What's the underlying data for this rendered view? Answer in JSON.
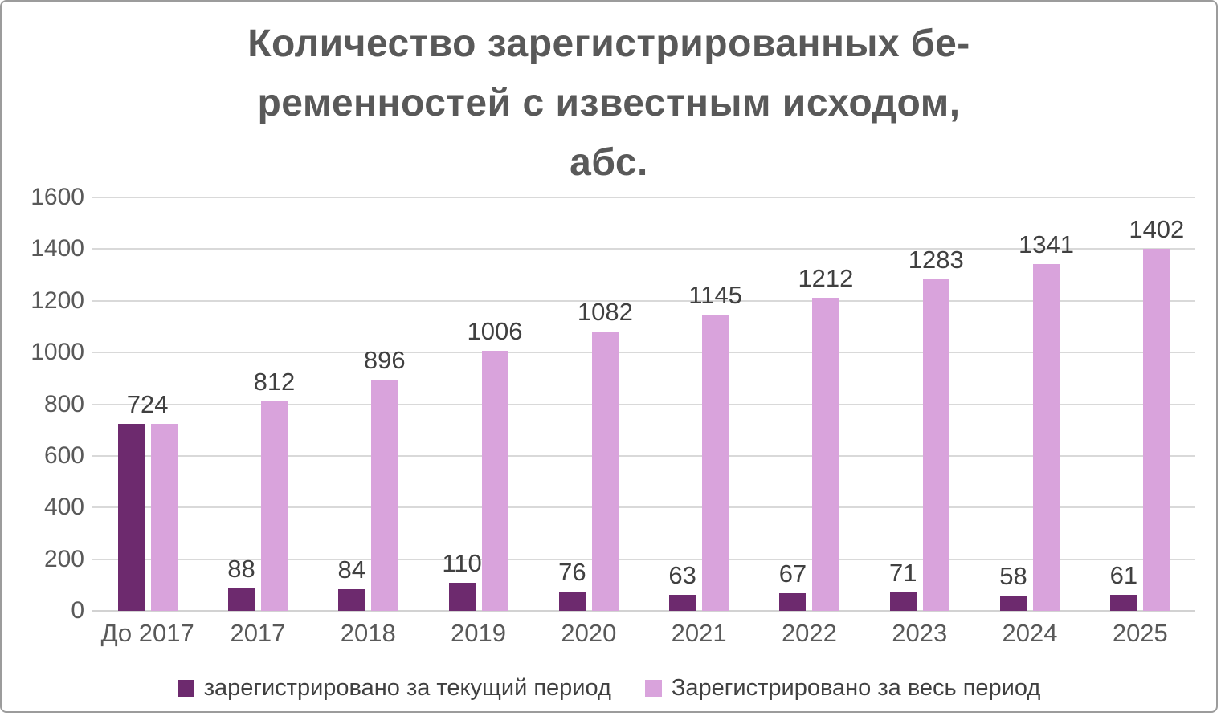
{
  "title": {
    "lines": [
      "Количество зарегистрированных бе-",
      "ременностей с известным исходом,",
      "абс."
    ]
  },
  "chart_data": {
    "type": "bar",
    "title": "Количество зарегистрированных беременностей с известным исходом, абс.",
    "categories": [
      "До 2017",
      "2017",
      "2018",
      "2019",
      "2020",
      "2021",
      "2022",
      "2023",
      "2024",
      "2025"
    ],
    "series": [
      {
        "name": "зарегистрировано за текущий период",
        "color": "#6D2A6E",
        "values": [
          724,
          88,
          84,
          110,
          76,
          63,
          67,
          71,
          58,
          61
        ]
      },
      {
        "name": "Зарегистрировано за весь период",
        "color": "#D9A3DC",
        "values": [
          724,
          812,
          896,
          1006,
          1082,
          1145,
          1212,
          1283,
          1341,
          1402
        ]
      }
    ],
    "ylim": [
      0,
      1600
    ],
    "ytick_step": 200,
    "grid": true,
    "data_labels": true,
    "legend_position": "bottom",
    "xlabel": "",
    "ylabel": ""
  },
  "colors": {
    "border": "#9c9c9c",
    "title_text": "#595959",
    "tick_text": "#595959",
    "data_label_text": "#404040",
    "gridline": "#d9d9d9",
    "axis_line": "#d2d2d2",
    "series_current": "#6D2A6E",
    "series_total": "#D9A3DC"
  }
}
